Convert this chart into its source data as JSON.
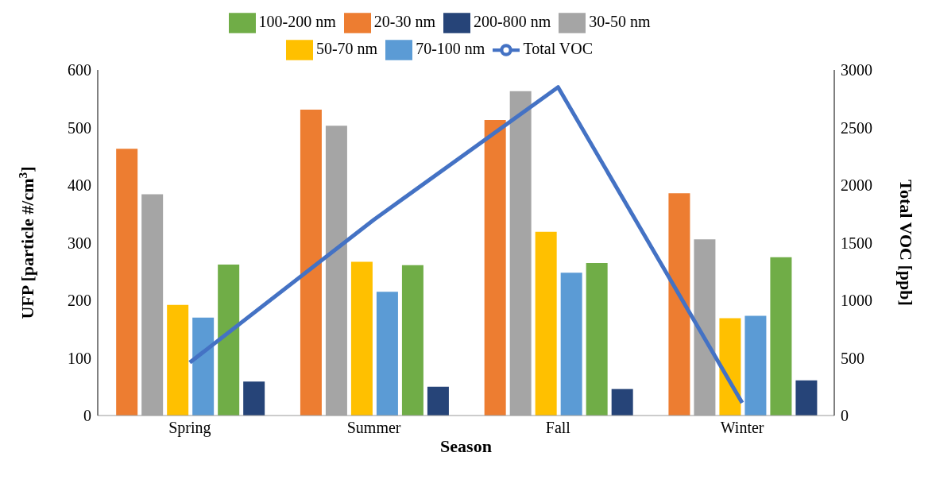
{
  "chart_data": {
    "type": "bar",
    "xlabel": "Season",
    "ylabel": "UFP [particle #/cm$^{3}$]",
    "y2label": "Total VOC [ppb]",
    "categories": [
      "Spring",
      "Summer",
      "Fall",
      "Winter"
    ],
    "series": [
      {
        "name": "20-30 nm",
        "color": "#ed7d31",
        "values": [
          463,
          531,
          513,
          386
        ]
      },
      {
        "name": "30-50 nm",
        "color": "#a5a5a5",
        "values": [
          384,
          503,
          563,
          306
        ]
      },
      {
        "name": "50-70 nm",
        "color": "#ffc000",
        "values": [
          192,
          267,
          319,
          169
        ]
      },
      {
        "name": "70-100 nm",
        "color": "#5b9bd5",
        "values": [
          170,
          215,
          248,
          173
        ]
      },
      {
        "name": "100-200 nm",
        "color": "#70ad47",
        "values": [
          262,
          261,
          265,
          275
        ]
      },
      {
        "name": "200-800 nm",
        "color": "#264478",
        "values": [
          59,
          50,
          46,
          61
        ]
      },
      {
        "name": "Total VOC",
        "color": "#4472c4",
        "type": "line",
        "axis": "y2",
        "values": [
          460,
          1700,
          2850,
          110
        ]
      }
    ],
    "ylim": [
      0,
      600
    ],
    "yticks": [
      0,
      100,
      200,
      300,
      400,
      500,
      600
    ],
    "y2lim": [
      0,
      3000
    ],
    "y2ticks": [
      0,
      500,
      1000,
      1500,
      2000,
      2500,
      3000
    ],
    "grid": false,
    "legend": "top",
    "marker": "none"
  }
}
